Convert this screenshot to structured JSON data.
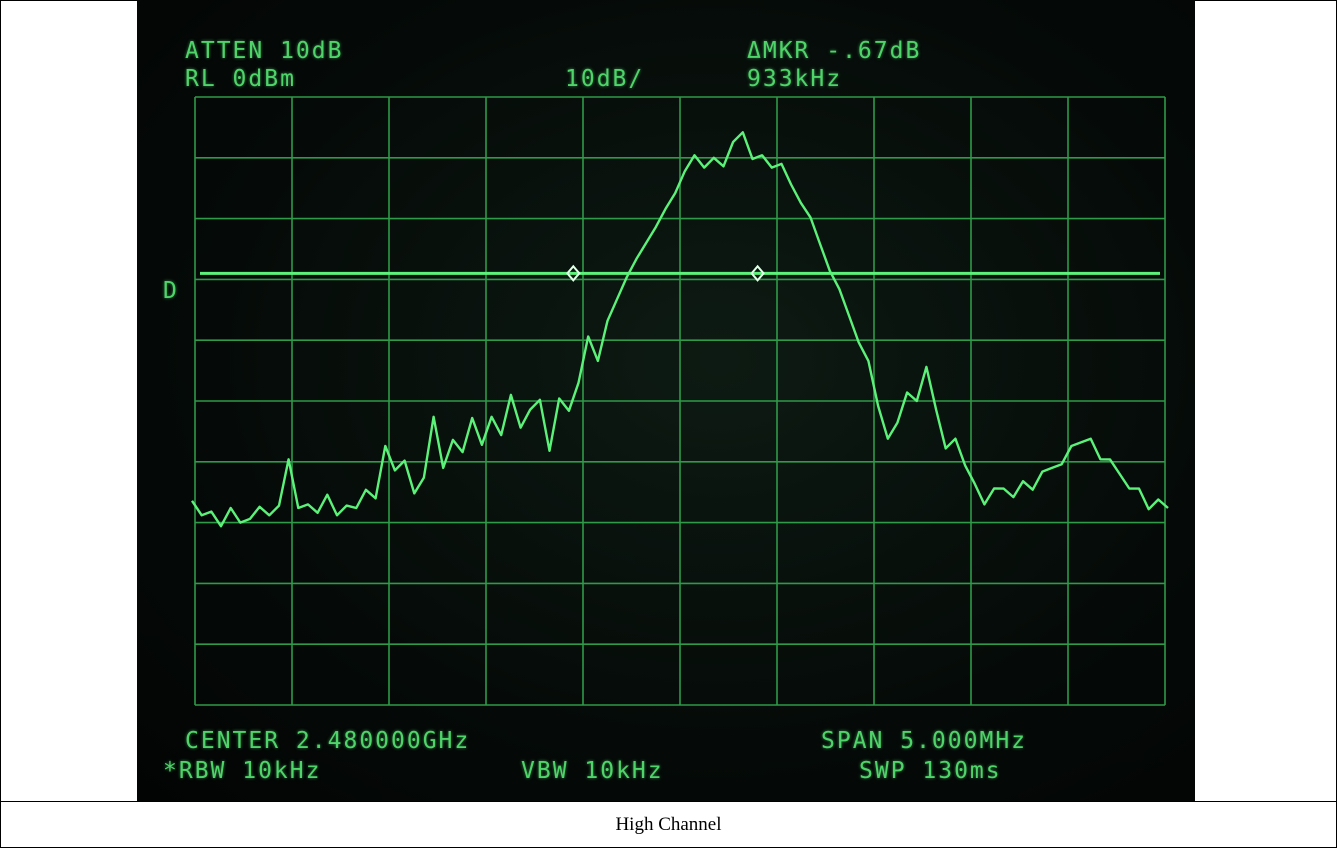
{
  "screen": {
    "atten": "ATTEN 10dB",
    "rl": "RL 0dBm",
    "scale": "10dB/",
    "delta_mkr": "ΔMKR -.67dB",
    "delta_freq": "933kHz",
    "display_line_marker": "D",
    "center": "CENTER 2.480000GHz",
    "span": "SPAN 5.000MHz",
    "rbw": "*RBW 10kHz",
    "vbw": "VBW 10kHz",
    "swp": "SWP 130ms",
    "colors": {
      "trace": "#5cf27a",
      "grid": "#2f9a48",
      "text": "#4fd46a",
      "screen_bg": "#050a08"
    },
    "display_line_level_div": 2.9,
    "marker_left_div": 3.9,
    "marker_right_div": 5.8,
    "trace_levels_div": [
      6.7,
      6.9,
      6.8,
      7.0,
      6.8,
      7.0,
      6.9,
      6.8,
      6.9,
      6.7,
      5.9,
      6.8,
      6.7,
      6.8,
      6.6,
      6.9,
      6.7,
      6.7,
      6.5,
      6.6,
      5.7,
      6.2,
      6.0,
      6.5,
      6.2,
      5.3,
      6.1,
      5.6,
      5.9,
      5.3,
      5.7,
      5.2,
      5.6,
      4.9,
      5.4,
      5.2,
      5.0,
      5.8,
      4.9,
      5.2,
      4.7,
      3.9,
      4.4,
      3.7,
      3.3,
      2.9,
      2.7,
      2.4,
      2.1,
      1.9,
      1.6,
      1.2,
      0.9,
      1.2,
      1.0,
      1.1,
      0.8,
      0.6,
      1.0,
      0.9,
      1.2,
      1.1,
      1.4,
      1.8,
      2.0,
      2.4,
      2.8,
      3.2,
      3.6,
      4.0,
      4.4,
      5.1,
      5.6,
      5.3,
      4.9,
      5.0,
      4.4,
      5.2,
      5.8,
      5.6,
      6.0,
      6.4,
      6.7,
      6.4,
      6.5,
      6.6,
      6.3,
      6.4,
      6.2,
      6.1,
      6.0,
      5.8,
      5.7,
      5.6,
      5.9,
      6.0,
      6.2,
      6.4,
      6.5,
      6.8,
      6.6,
      6.7
    ]
  },
  "caption": "High Channel"
}
